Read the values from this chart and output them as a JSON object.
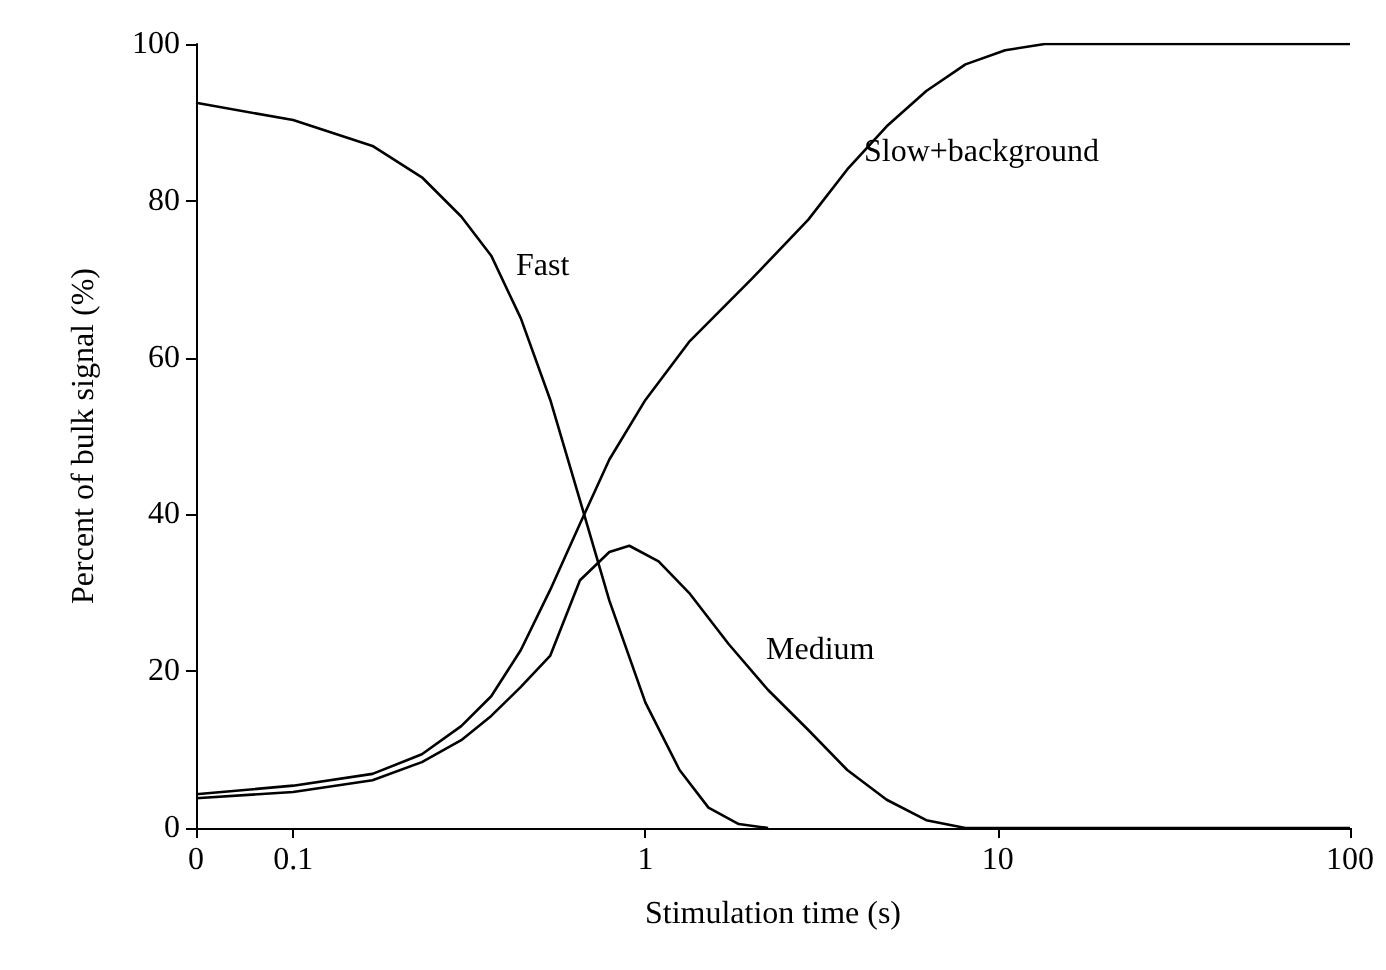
{
  "chart_data": {
    "type": "line",
    "xlabel": "Stimulation time (s)",
    "ylabel": "Percent of bulk signal (%)",
    "log": "x",
    "grid": false,
    "legend": false,
    "marker": "none",
    "line_style": "solid",
    "xlim": [
      0.053,
      100
    ],
    "xticks": [
      {
        "value": 0.053,
        "label": "0"
      },
      0.1,
      1,
      10,
      100
    ],
    "ylim": [
      0,
      100
    ],
    "yticks": [
      0,
      20,
      40,
      60,
      80,
      100
    ],
    "series": [
      {
        "name": "Fast",
        "color": "#000000",
        "x": [
          0.053,
          0.1,
          0.168,
          0.232,
          0.3,
          0.365,
          0.443,
          0.537,
          0.652,
          0.79,
          1,
          1.25,
          1.51,
          1.84,
          2.23
        ],
        "values": [
          92.5,
          90.3,
          87,
          83,
          78,
          73,
          65,
          54.6,
          41.8,
          29,
          16,
          7.4,
          2.6,
          0.5,
          0
        ]
      },
      {
        "name": "Medium",
        "color": "#000000",
        "x": [
          0.053,
          0.1,
          0.168,
          0.232,
          0.3,
          0.365,
          0.443,
          0.537,
          0.652,
          0.79,
          0.9,
          1.09,
          1.33,
          1.72,
          2.23,
          2.9,
          3.74,
          4.84,
          6.27,
          8.1,
          100
        ],
        "values": [
          3.8,
          4.6,
          6.1,
          8.4,
          11.2,
          14.3,
          18,
          22,
          31.6,
          35.2,
          36,
          34,
          30,
          23.5,
          17.6,
          12.5,
          7.4,
          3.6,
          1,
          0,
          0
        ]
      },
      {
        "name": "Slow+background",
        "color": "#000000",
        "x": [
          0.053,
          0.1,
          0.168,
          0.232,
          0.3,
          0.365,
          0.443,
          0.537,
          0.652,
          0.79,
          1,
          1.33,
          2.0,
          2.9,
          3.74,
          4.84,
          6.27,
          8.1,
          10.5,
          13.6,
          100
        ],
        "values": [
          4.3,
          5.4,
          6.9,
          9.4,
          13,
          16.8,
          22.7,
          30.4,
          38.8,
          47,
          54.6,
          62,
          70,
          77.6,
          84,
          89.5,
          94,
          97.4,
          99.2,
          100,
          100
        ]
      }
    ]
  }
}
